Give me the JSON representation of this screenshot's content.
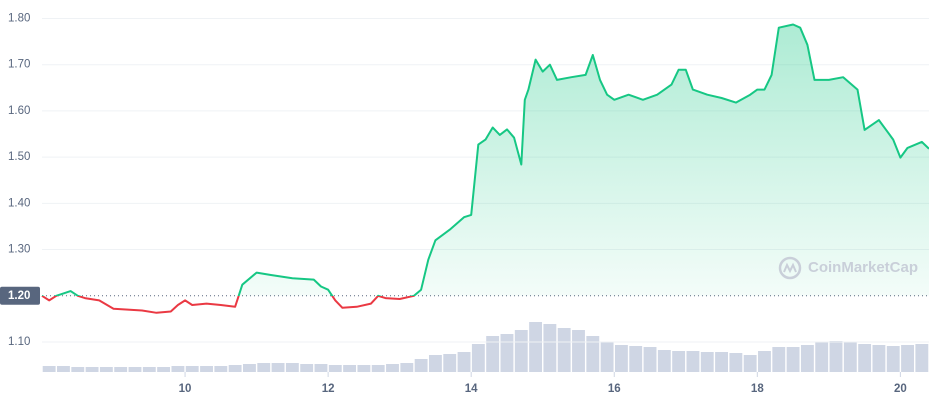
{
  "chart_data": {
    "type": "line",
    "watermark": "CoinMarketCap",
    "x": [
      8.0,
      8.1,
      8.2,
      8.3,
      8.4,
      8.5,
      8.6,
      8.8,
      9.0,
      9.2,
      9.4,
      9.6,
      9.8,
      9.9,
      10.0,
      10.1,
      10.3,
      10.5,
      10.7,
      10.75,
      10.8,
      11.0,
      11.2,
      11.5,
      11.8,
      11.9,
      12.0,
      12.1,
      12.2,
      12.4,
      12.6,
      12.7,
      12.8,
      13.0,
      13.2,
      13.3,
      13.4,
      13.5,
      13.7,
      13.9,
      14.0,
      14.1,
      14.2,
      14.3,
      14.4,
      14.5,
      14.6,
      14.7,
      14.75,
      14.8,
      14.9,
      15.0,
      15.1,
      15.2,
      15.4,
      15.6,
      15.7,
      15.8,
      15.9,
      16.0,
      16.2,
      16.4,
      16.6,
      16.8,
      16.9,
      17.0,
      17.1,
      17.3,
      17.5,
      17.7,
      17.9,
      18.0,
      18.1,
      18.2,
      18.3,
      18.5,
      18.6,
      18.7,
      18.8,
      19.0,
      19.2,
      19.4,
      19.5,
      19.7,
      19.9,
      20.0,
      20.1,
      20.3,
      20.4
    ],
    "series": [
      {
        "color": "#16c784",
        "values": [
          1.2,
          1.19,
          1.2,
          1.205,
          1.21,
          1.2,
          1.195,
          1.19,
          1.172,
          1.17,
          1.168,
          1.163,
          1.166,
          1.18,
          1.19,
          1.18,
          1.183,
          1.18,
          1.176,
          1.2,
          1.224,
          1.25,
          1.245,
          1.238,
          1.235,
          1.22,
          1.213,
          1.19,
          1.174,
          1.176,
          1.183,
          1.2,
          1.195,
          1.193,
          1.2,
          1.213,
          1.278,
          1.32,
          1.343,
          1.37,
          1.375,
          1.527,
          1.538,
          1.564,
          1.548,
          1.56,
          1.542,
          1.484,
          1.624,
          1.646,
          1.711,
          1.685,
          1.7,
          1.667,
          1.673,
          1.678,
          1.721,
          1.667,
          1.635,
          1.624,
          1.635,
          1.624,
          1.635,
          1.657,
          1.689,
          1.689,
          1.646,
          1.635,
          1.628,
          1.618,
          1.635,
          1.646,
          1.646,
          1.678,
          1.78,
          1.787,
          1.78,
          1.743,
          1.667,
          1.667,
          1.673,
          1.646,
          1.559,
          1.58,
          1.538,
          1.499,
          1.52,
          1.533,
          1.518
        ]
      }
    ],
    "below_color": "#ea3943",
    "baseline": {
      "value": 1.2,
      "label": "1.20"
    },
    "ylim": [
      1.035,
      1.84
    ],
    "yticks": [
      {
        "value": 1.1,
        "label": "1.10"
      },
      {
        "value": 1.3,
        "label": "1.30"
      },
      {
        "value": 1.4,
        "label": "1.40"
      },
      {
        "value": 1.5,
        "label": "1.50"
      },
      {
        "value": 1.6,
        "label": "1.60"
      },
      {
        "value": 1.7,
        "label": "1.70"
      },
      {
        "value": 1.8,
        "label": "1.80"
      }
    ],
    "xlim": [
      8,
      20.4
    ],
    "xticks": [
      10,
      12,
      14,
      16,
      18,
      20
    ],
    "grid": true,
    "volume": {
      "color": "#cfd6e4",
      "x": [
        8.1,
        8.3,
        8.5,
        8.7,
        8.9,
        9.1,
        9.3,
        9.5,
        9.7,
        9.9,
        10.1,
        10.3,
        10.5,
        10.7,
        10.9,
        11.1,
        11.3,
        11.5,
        11.7,
        11.9,
        12.1,
        12.3,
        12.5,
        12.7,
        12.9,
        13.1,
        13.3,
        13.5,
        13.7,
        13.9,
        14.1,
        14.3,
        14.5,
        14.7,
        14.9,
        15.1,
        15.3,
        15.5,
        15.7,
        15.9,
        16.1,
        16.3,
        16.5,
        16.7,
        16.9,
        17.1,
        17.3,
        17.5,
        17.7,
        17.9,
        18.1,
        18.3,
        18.5,
        18.7,
        18.9,
        19.1,
        19.3,
        19.5,
        19.7,
        19.9,
        20.1,
        20.3
      ],
      "values": [
        6,
        6,
        5,
        5,
        5,
        5,
        5,
        5,
        5,
        6,
        6,
        6,
        6,
        7,
        8,
        9,
        9,
        9,
        8,
        8,
        7,
        7,
        7,
        7,
        8,
        9,
        13,
        17,
        18,
        20,
        28,
        36,
        38,
        42,
        50,
        48,
        44,
        42,
        36,
        30,
        27,
        26,
        25,
        22,
        21,
        21,
        20,
        20,
        19,
        17,
        21,
        25,
        25,
        27,
        30,
        31,
        30,
        28,
        27,
        26,
        27,
        28
      ],
      "y2lim": [
        0,
        60
      ]
    }
  }
}
